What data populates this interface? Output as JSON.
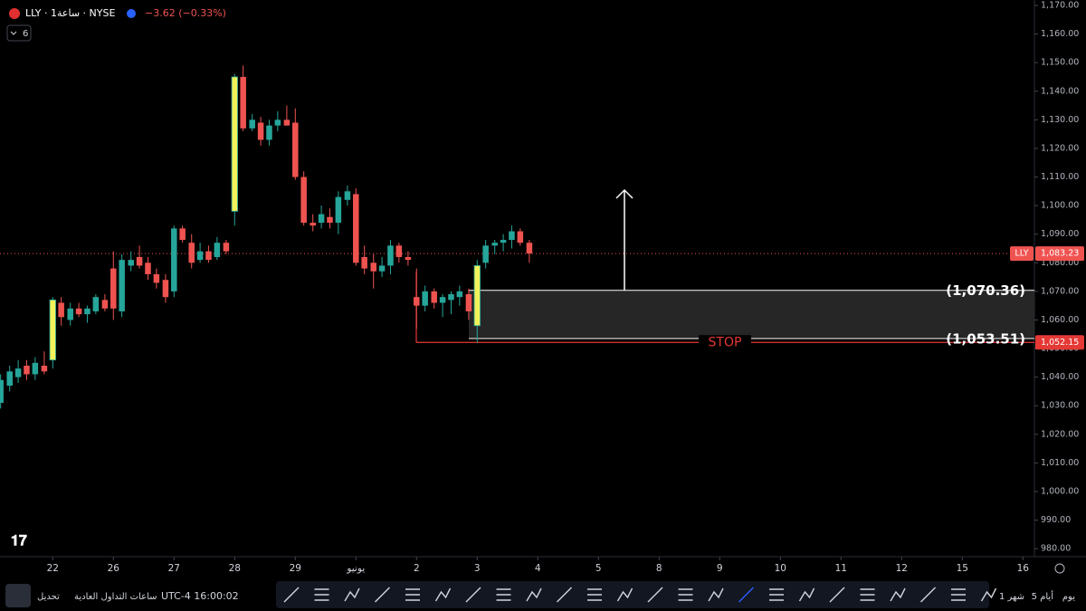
{
  "chart_data": {
    "type": "candlestick",
    "header": {
      "symbol": "LLY · 1ساعة · NYSE",
      "change": "−3.62 (−0.33%)",
      "indicators": "6"
    },
    "x": [
      -0.86,
      -0.71,
      -0.57,
      -0.43,
      -0.29,
      -0.14,
      0,
      0.14,
      0.29,
      0.43,
      0.57,
      0.71,
      0.86,
      1,
      1.14,
      1.29,
      1.43,
      1.57,
      1.71,
      1.86,
      2,
      2.14,
      2.29,
      2.43,
      2.57,
      2.71,
      2.86,
      3,
      3.14,
      3.29,
      3.43,
      3.57,
      3.71,
      3.86,
      4,
      4.14,
      4.29,
      4.43,
      4.57,
      4.71,
      4.86,
      5,
      5.14,
      5.29,
      5.43,
      5.57,
      5.71,
      5.86,
      6,
      6.14,
      6.29,
      6.43,
      6.57,
      6.71,
      6.86,
      7,
      7.14,
      7.29,
      7.43,
      7.57,
      7.71,
      7.86
    ],
    "open": [
      1031,
      1037,
      1040,
      1044,
      1041,
      1044,
      1046,
      1066,
      1060,
      1064,
      1062,
      1063,
      1067,
      1078,
      1063,
      1079,
      1082,
      1080,
      1076,
      1074,
      1070,
      1092,
      1087,
      1081,
      1084,
      1082,
      1087,
      1098,
      1145,
      1127,
      1129,
      1123,
      1128,
      1130,
      1129,
      1110,
      1094,
      1094,
      1096,
      1094,
      1102,
      1104,
      1082,
      1080,
      1077,
      1079,
      1086,
      1082,
      1068,
      1065,
      1070,
      1066,
      1067,
      1068,
      1069,
      1058,
      1080,
      1086,
      1087,
      1088,
      1091,
      1087
    ],
    "high": [
      1041,
      1044,
      1046,
      1046,
      1047,
      1049,
      1068,
      1068,
      1066,
      1066,
      1065,
      1069,
      1069,
      1084,
      1083,
      1084,
      1086,
      1082,
      1078,
      1076,
      1093,
      1093,
      1090,
      1087,
      1086,
      1089,
      1088,
      1146,
      1149,
      1132,
      1131,
      1130,
      1133,
      1135,
      1134,
      1112,
      1097,
      1100,
      1099,
      1105,
      1107,
      1106,
      1086,
      1083,
      1082,
      1088,
      1087,
      1084,
      1078,
      1072,
      1071,
      1069,
      1070,
      1072,
      1071,
      1081,
      1088,
      1088,
      1090,
      1093,
      1092,
      1088
    ],
    "low": [
      1029,
      1035,
      1038,
      1039,
      1039,
      1041,
      1043,
      1058,
      1058,
      1061,
      1059,
      1062,
      1063,
      1060,
      1061,
      1077,
      1078,
      1074,
      1071,
      1066,
      1068,
      1087,
      1078,
      1080,
      1080,
      1081,
      1083,
      1093,
      1126,
      1126,
      1121,
      1121,
      1126,
      1128,
      1109,
      1093,
      1091,
      1092,
      1092,
      1090,
      1100,
      1079,
      1076,
      1071,
      1075,
      1076,
      1080,
      1079,
      1057,
      1063,
      1064,
      1061,
      1062,
      1065,
      1060,
      1052,
      1078,
      1083,
      1084,
      1085,
      1086,
      1080
    ],
    "close": [
      1039,
      1042,
      1043,
      1041,
      1045,
      1042,
      1067,
      1061,
      1064,
      1062,
      1064,
      1068,
      1064,
      1064,
      1081,
      1081,
      1079,
      1076,
      1073,
      1068,
      1092,
      1088,
      1080,
      1084,
      1081,
      1087,
      1084,
      1145,
      1127,
      1130,
      1123,
      1128,
      1130,
      1128,
      1110,
      1094,
      1093,
      1097,
      1094,
      1103,
      1105,
      1080,
      1078,
      1077,
      1079,
      1086,
      1082,
      1081,
      1065,
      1070,
      1066,
      1068,
      1069,
      1070,
      1063,
      1079,
      1086,
      1087,
      1088,
      1091,
      1087,
      1083.23
    ],
    "up_color": "#26a69a",
    "down_color": "#ef5350",
    "highlight_color": "#f2f25a",
    "highlight_indices": [
      6,
      27,
      55
    ],
    "xlim": [
      -0.87,
      16.19
    ],
    "xticks": [
      {
        "value": 0,
        "label": "22"
      },
      {
        "value": 1,
        "label": "26"
      },
      {
        "value": 2,
        "label": "27"
      },
      {
        "value": 3,
        "label": "28"
      },
      {
        "value": 4,
        "label": "29"
      },
      {
        "value": 5,
        "label": "يونيو"
      },
      {
        "value": 6,
        "label": "2"
      },
      {
        "value": 7,
        "label": "3"
      },
      {
        "value": 8,
        "label": "4"
      },
      {
        "value": 9,
        "label": "5"
      },
      {
        "value": 10,
        "label": "8"
      },
      {
        "value": 11,
        "label": "9"
      },
      {
        "value": 12,
        "label": "10"
      },
      {
        "value": 13,
        "label": "11"
      },
      {
        "value": 14,
        "label": "12"
      },
      {
        "value": 15,
        "label": "15"
      },
      {
        "value": 16,
        "label": "16"
      }
    ],
    "ylim": [
      977.2,
      1171.9
    ],
    "yticks": [
      {
        "value": 980,
        "label": "980.00"
      },
      {
        "value": 990,
        "label": "990.00"
      },
      {
        "value": 1000,
        "label": "1,000.00"
      },
      {
        "value": 1010,
        "label": "1,010.00"
      },
      {
        "value": 1020,
        "label": "1,020.00"
      },
      {
        "value": 1030,
        "label": "1,030.00"
      },
      {
        "value": 1040,
        "label": "1,040.00"
      },
      {
        "value": 1050,
        "label": "1,050.00"
      },
      {
        "value": 1060,
        "label": "1,060.00"
      },
      {
        "value": 1070,
        "label": "1,070.00"
      },
      {
        "value": 1080,
        "label": "1,080.00"
      },
      {
        "value": 1090,
        "label": "1,090.00"
      },
      {
        "value": 1100,
        "label": "1,100.00"
      },
      {
        "value": 1110,
        "label": "1,110.00"
      },
      {
        "value": 1120,
        "label": "1,120.00"
      },
      {
        "value": 1130,
        "label": "1,130.00"
      },
      {
        "value": 1140,
        "label": "1,140.00"
      },
      {
        "value": 1150,
        "label": "1,150.00"
      },
      {
        "value": 1160,
        "label": "1,160.00"
      },
      {
        "value": 1170,
        "label": "1,170.00"
      }
    ],
    "annotations": {
      "box_top": {
        "value": 1070.36,
        "label": "(1,070.36)"
      },
      "box_bottom": {
        "value": 1053.51,
        "label": "(1,053.51)"
      },
      "stop_text": "STOP",
      "stop_price": {
        "value": 1052.15,
        "label": "1,052.15"
      },
      "last_price": {
        "value": 1083.23,
        "label": "1,083.23"
      },
      "symbol_tag": "LLY"
    },
    "footer": {
      "ranges": [
        "يوم",
        "5 أيام",
        "1 شهر"
      ],
      "time": "UTC-4 16:00:02",
      "session": "ساعات التداول العادية",
      "adjust": "تحديل"
    }
  }
}
